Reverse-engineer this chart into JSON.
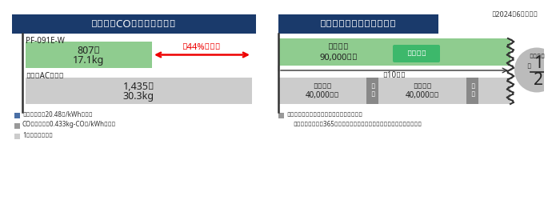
{
  "bg_color": "#ffffff",
  "top_note": "（2024年6月現在）",
  "left_title": "電気代・CO₂排出量の比較",
  "right_title": "メンテナンスコストの比較",
  "title_bg": "#1a3a6b",
  "title_color": "#ffffff",
  "pf_label": "PF-091E-W",
  "pf_bar_color": "#8fcc8f",
  "pf_bar_text1": "807円",
  "pf_bar_text2": "17.1kg",
  "ac_label": "従来のACファン",
  "ac_bar_color": "#cccccc",
  "ac_bar_text1": "1,435円",
  "ac_bar_text2": "30.3kg",
  "arrow_text": "絀44%カット",
  "arrow_color": "#ee0000",
  "legend1_color": "#4a6fa5",
  "legend2_color": "#999999",
  "legend3_color": "#cccccc",
  "footnote1": "電気代は単価20.48円/kWhで計算",
  "footnote2": "CO₂排出量は0.433kg-CO₂/kWhで計算",
  "footnote3": "1年間の値です。",
  "right_footnote1": "メンテナンスの費用・手間を削減できます。",
  "right_footnote2": "条件：連続運転（365日）した場合。省エネ効果、期待寸命は一例です。",
  "pf_life_text1": "期待寸命",
  "pf_life_text2": "90,000時間",
  "pf_badge_text": "交換不要",
  "pf_badge_color": "#3db86b",
  "pf_badge_text_color": "#ffffff",
  "arrow10_text": "絀10年間",
  "ac_life1_text1": "期待寸命",
  "ac_life1_text2": "40,000時間",
  "ac_life2_text1": "期待寸命",
  "ac_life2_text2": "40,000時間",
  "exchange_text": "交換",
  "exchange_color": "#888888",
  "circle_text1": "交換頼度",
  "circle_num1": "1",
  "circle_num2": "2",
  "circle_yaku": "約",
  "circle_color": "#bbbbbb"
}
